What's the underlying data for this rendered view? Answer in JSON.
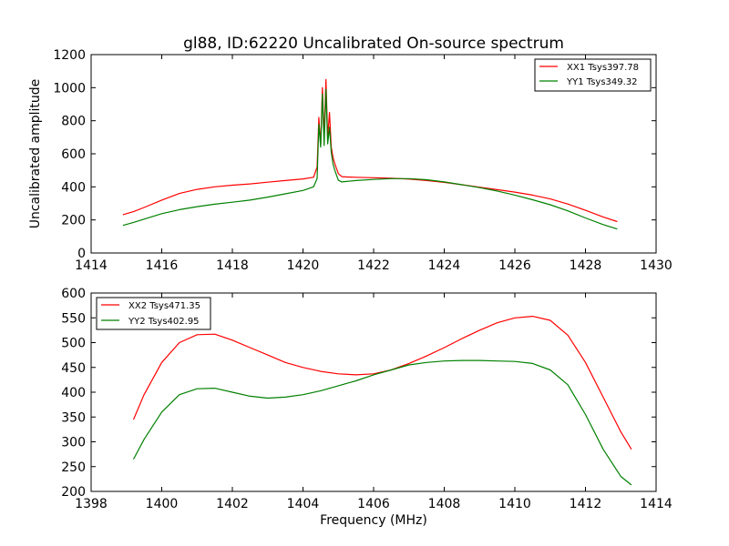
{
  "figure": {
    "title": "gl88, ID:62220 Uncalibrated On-source spectrum",
    "xlabel": "Frequency (MHz)"
  },
  "chart_data": [
    {
      "type": "line",
      "title": "gl88, ID:62220 Uncalibrated On-source spectrum",
      "xlabel": "",
      "ylabel": "Uncalibrated amplitude",
      "xlim": [
        1414,
        1430
      ],
      "ylim": [
        0,
        1200
      ],
      "xticks": [
        1414,
        1416,
        1418,
        1420,
        1422,
        1424,
        1426,
        1428,
        1430
      ],
      "yticks": [
        0,
        200,
        400,
        600,
        800,
        1000,
        1200
      ],
      "grid": false,
      "legend_position": "top-right",
      "series": [
        {
          "name": "XX1 Tsys397.78",
          "color": "#ff0000",
          "x": [
            1414.9,
            1415.2,
            1415.5,
            1416.0,
            1416.5,
            1417.0,
            1417.5,
            1418.0,
            1418.5,
            1419.0,
            1419.5,
            1420.0,
            1420.3,
            1420.4,
            1420.45,
            1420.5,
            1420.55,
            1420.6,
            1420.65,
            1420.7,
            1420.75,
            1420.8,
            1420.85,
            1420.9,
            1421.0,
            1421.1,
            1421.2,
            1421.5,
            1422.0,
            1422.5,
            1423.0,
            1423.5,
            1424.0,
            1424.5,
            1425.0,
            1425.5,
            1426.0,
            1426.5,
            1427.0,
            1427.5,
            1428.0,
            1428.5,
            1428.9
          ],
          "y": [
            232,
            250,
            275,
            320,
            360,
            385,
            400,
            410,
            418,
            428,
            438,
            448,
            458,
            520,
            820,
            650,
            1000,
            700,
            1050,
            700,
            850,
            640,
            580,
            540,
            480,
            462,
            460,
            458,
            455,
            452,
            447,
            438,
            427,
            413,
            398,
            383,
            368,
            350,
            327,
            296,
            258,
            218,
            190
          ]
        },
        {
          "name": "YY1 Tsys349.32",
          "color": "#008000",
          "x": [
            1414.9,
            1415.2,
            1415.5,
            1416.0,
            1416.5,
            1417.0,
            1417.5,
            1418.0,
            1418.5,
            1419.0,
            1419.5,
            1420.0,
            1420.3,
            1420.4,
            1420.45,
            1420.5,
            1420.55,
            1420.6,
            1420.65,
            1420.7,
            1420.75,
            1420.8,
            1420.85,
            1420.9,
            1421.0,
            1421.1,
            1421.2,
            1421.5,
            1422.0,
            1422.5,
            1423.0,
            1423.5,
            1424.0,
            1424.5,
            1425.0,
            1425.5,
            1426.0,
            1426.5,
            1427.0,
            1427.5,
            1428.0,
            1428.5,
            1428.9
          ],
          "y": [
            167,
            185,
            205,
            238,
            262,
            280,
            295,
            307,
            320,
            338,
            358,
            378,
            400,
            450,
            780,
            640,
            960,
            650,
            990,
            660,
            760,
            610,
            540,
            500,
            440,
            430,
            432,
            438,
            445,
            450,
            450,
            443,
            430,
            413,
            395,
            375,
            350,
            322,
            292,
            255,
            212,
            172,
            145
          ]
        }
      ]
    },
    {
      "type": "line",
      "title": "",
      "xlabel": "Frequency (MHz)",
      "ylabel": "",
      "xlim": [
        1398,
        1414
      ],
      "ylim": [
        200,
        600
      ],
      "xticks": [
        1398,
        1400,
        1402,
        1404,
        1406,
        1408,
        1410,
        1412,
        1414
      ],
      "yticks": [
        200,
        250,
        300,
        350,
        400,
        450,
        500,
        550,
        600
      ],
      "grid": false,
      "legend_position": "top-left",
      "series": [
        {
          "name": "XX2 Tsys471.35",
          "color": "#ff0000",
          "x": [
            1399.2,
            1399.5,
            1400.0,
            1400.5,
            1401.0,
            1401.5,
            1402.0,
            1402.5,
            1403.0,
            1403.5,
            1404.0,
            1404.5,
            1405.0,
            1405.5,
            1406.0,
            1406.5,
            1407.0,
            1407.5,
            1408.0,
            1408.5,
            1409.0,
            1409.5,
            1410.0,
            1410.5,
            1411.0,
            1411.5,
            1412.0,
            1412.5,
            1413.0,
            1413.3
          ],
          "y": [
            345,
            395,
            460,
            500,
            516,
            517,
            505,
            490,
            475,
            460,
            450,
            442,
            437,
            435,
            437,
            445,
            458,
            473,
            490,
            508,
            525,
            540,
            550,
            553,
            545,
            515,
            460,
            390,
            320,
            285
          ]
        },
        {
          "name": "YY2 Tsys402.95",
          "color": "#008000",
          "x": [
            1399.2,
            1399.5,
            1400.0,
            1400.5,
            1401.0,
            1401.5,
            1402.0,
            1402.5,
            1403.0,
            1403.5,
            1404.0,
            1404.5,
            1405.0,
            1405.5,
            1406.0,
            1406.5,
            1407.0,
            1407.5,
            1408.0,
            1408.5,
            1409.0,
            1409.5,
            1410.0,
            1410.5,
            1411.0,
            1411.5,
            1412.0,
            1412.5,
            1413.0,
            1413.3
          ],
          "y": [
            265,
            305,
            360,
            395,
            407,
            408,
            400,
            392,
            388,
            390,
            395,
            403,
            413,
            423,
            435,
            445,
            455,
            460,
            463,
            464,
            464,
            463,
            462,
            458,
            445,
            415,
            355,
            285,
            230,
            213
          ]
        }
      ]
    }
  ]
}
